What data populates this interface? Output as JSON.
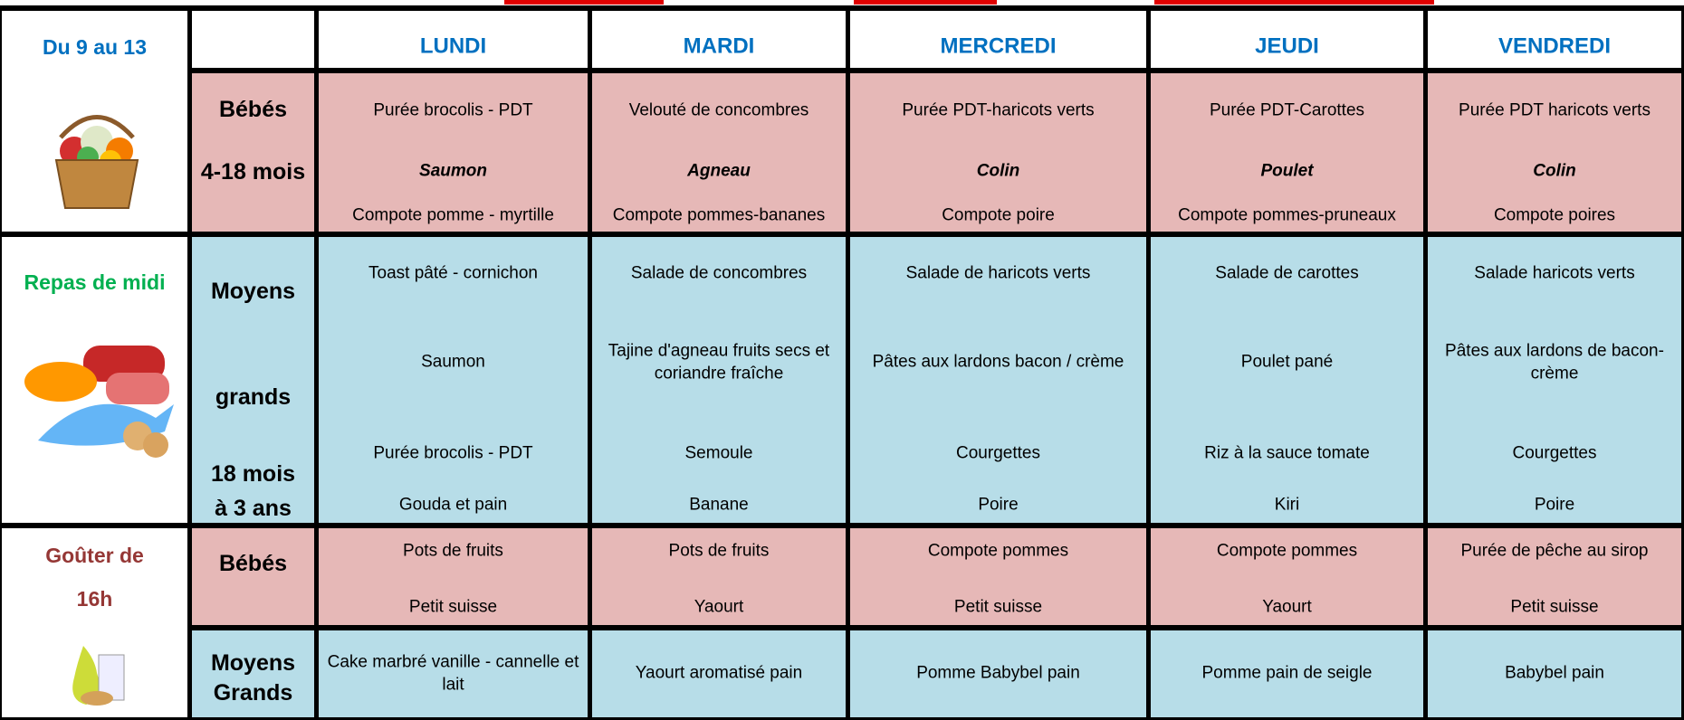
{
  "header": {
    "period": "Du 9 au 13",
    "days": [
      "LUNDI",
      "MARDI",
      "MERCREDI",
      "JEUDI",
      "VENDREDI"
    ]
  },
  "side": {
    "lunch": "Repas de midi",
    "snack": "Goûter de 16h"
  },
  "rows": [
    {
      "label": [
        "Bébés",
        "4-18 mois"
      ],
      "cells": [
        [
          "Purée brocolis - PDT",
          "Saumon",
          "Compote pomme - myrtille"
        ],
        [
          "Velouté de concombres",
          "Agneau",
          "Compote pommes-bananes"
        ],
        [
          "Purée PDT-haricots verts",
          "Colin",
          "Compote poire"
        ],
        [
          "Purée PDT-Carottes",
          "Poulet",
          "Compote pommes-pruneaux"
        ],
        [
          "Purée PDT haricots verts",
          "Colin",
          "Compote poires"
        ]
      ]
    },
    {
      "label": [
        "Moyens",
        "grands",
        "18 mois",
        "à 3 ans"
      ],
      "cells": [
        [
          "Toast pâté - cornichon",
          "Saumon",
          "Purée brocolis - PDT",
          "Gouda et pain"
        ],
        [
          "Salade de concombres",
          "Tajine d'agneau fruits secs et coriandre fraîche",
          "Semoule",
          "Banane"
        ],
        [
          "Salade de haricots verts",
          "Pâtes aux lardons bacon / crème",
          "Courgettes",
          "Poire"
        ],
        [
          "Salade de carottes",
          "Poulet pané",
          "Riz à la sauce tomate",
          "Kiri"
        ],
        [
          "Salade haricots verts",
          "Pâtes aux lardons de bacon-crème",
          "Courgettes",
          "Poire"
        ]
      ]
    },
    {
      "label": [
        "Bébés"
      ],
      "cells": [
        [
          "Pots de fruits",
          "Petit suisse"
        ],
        [
          "Pots de fruits",
          "Yaourt"
        ],
        [
          "Compote pommes",
          "Petit suisse"
        ],
        [
          "Compote pommes",
          "Yaourt"
        ],
        [
          "Purée de pêche au sirop",
          "Petit suisse"
        ]
      ]
    },
    {
      "label": [
        "Moyens",
        "Grands"
      ],
      "cells": [
        [
          "Cake marbré vanille - cannelle et lait"
        ],
        [
          "Yaourt aromatisé pain"
        ],
        [
          "Pomme Babybel pain"
        ],
        [
          "Pomme pain de seigle"
        ],
        [
          "Babybel pain"
        ]
      ]
    }
  ]
}
